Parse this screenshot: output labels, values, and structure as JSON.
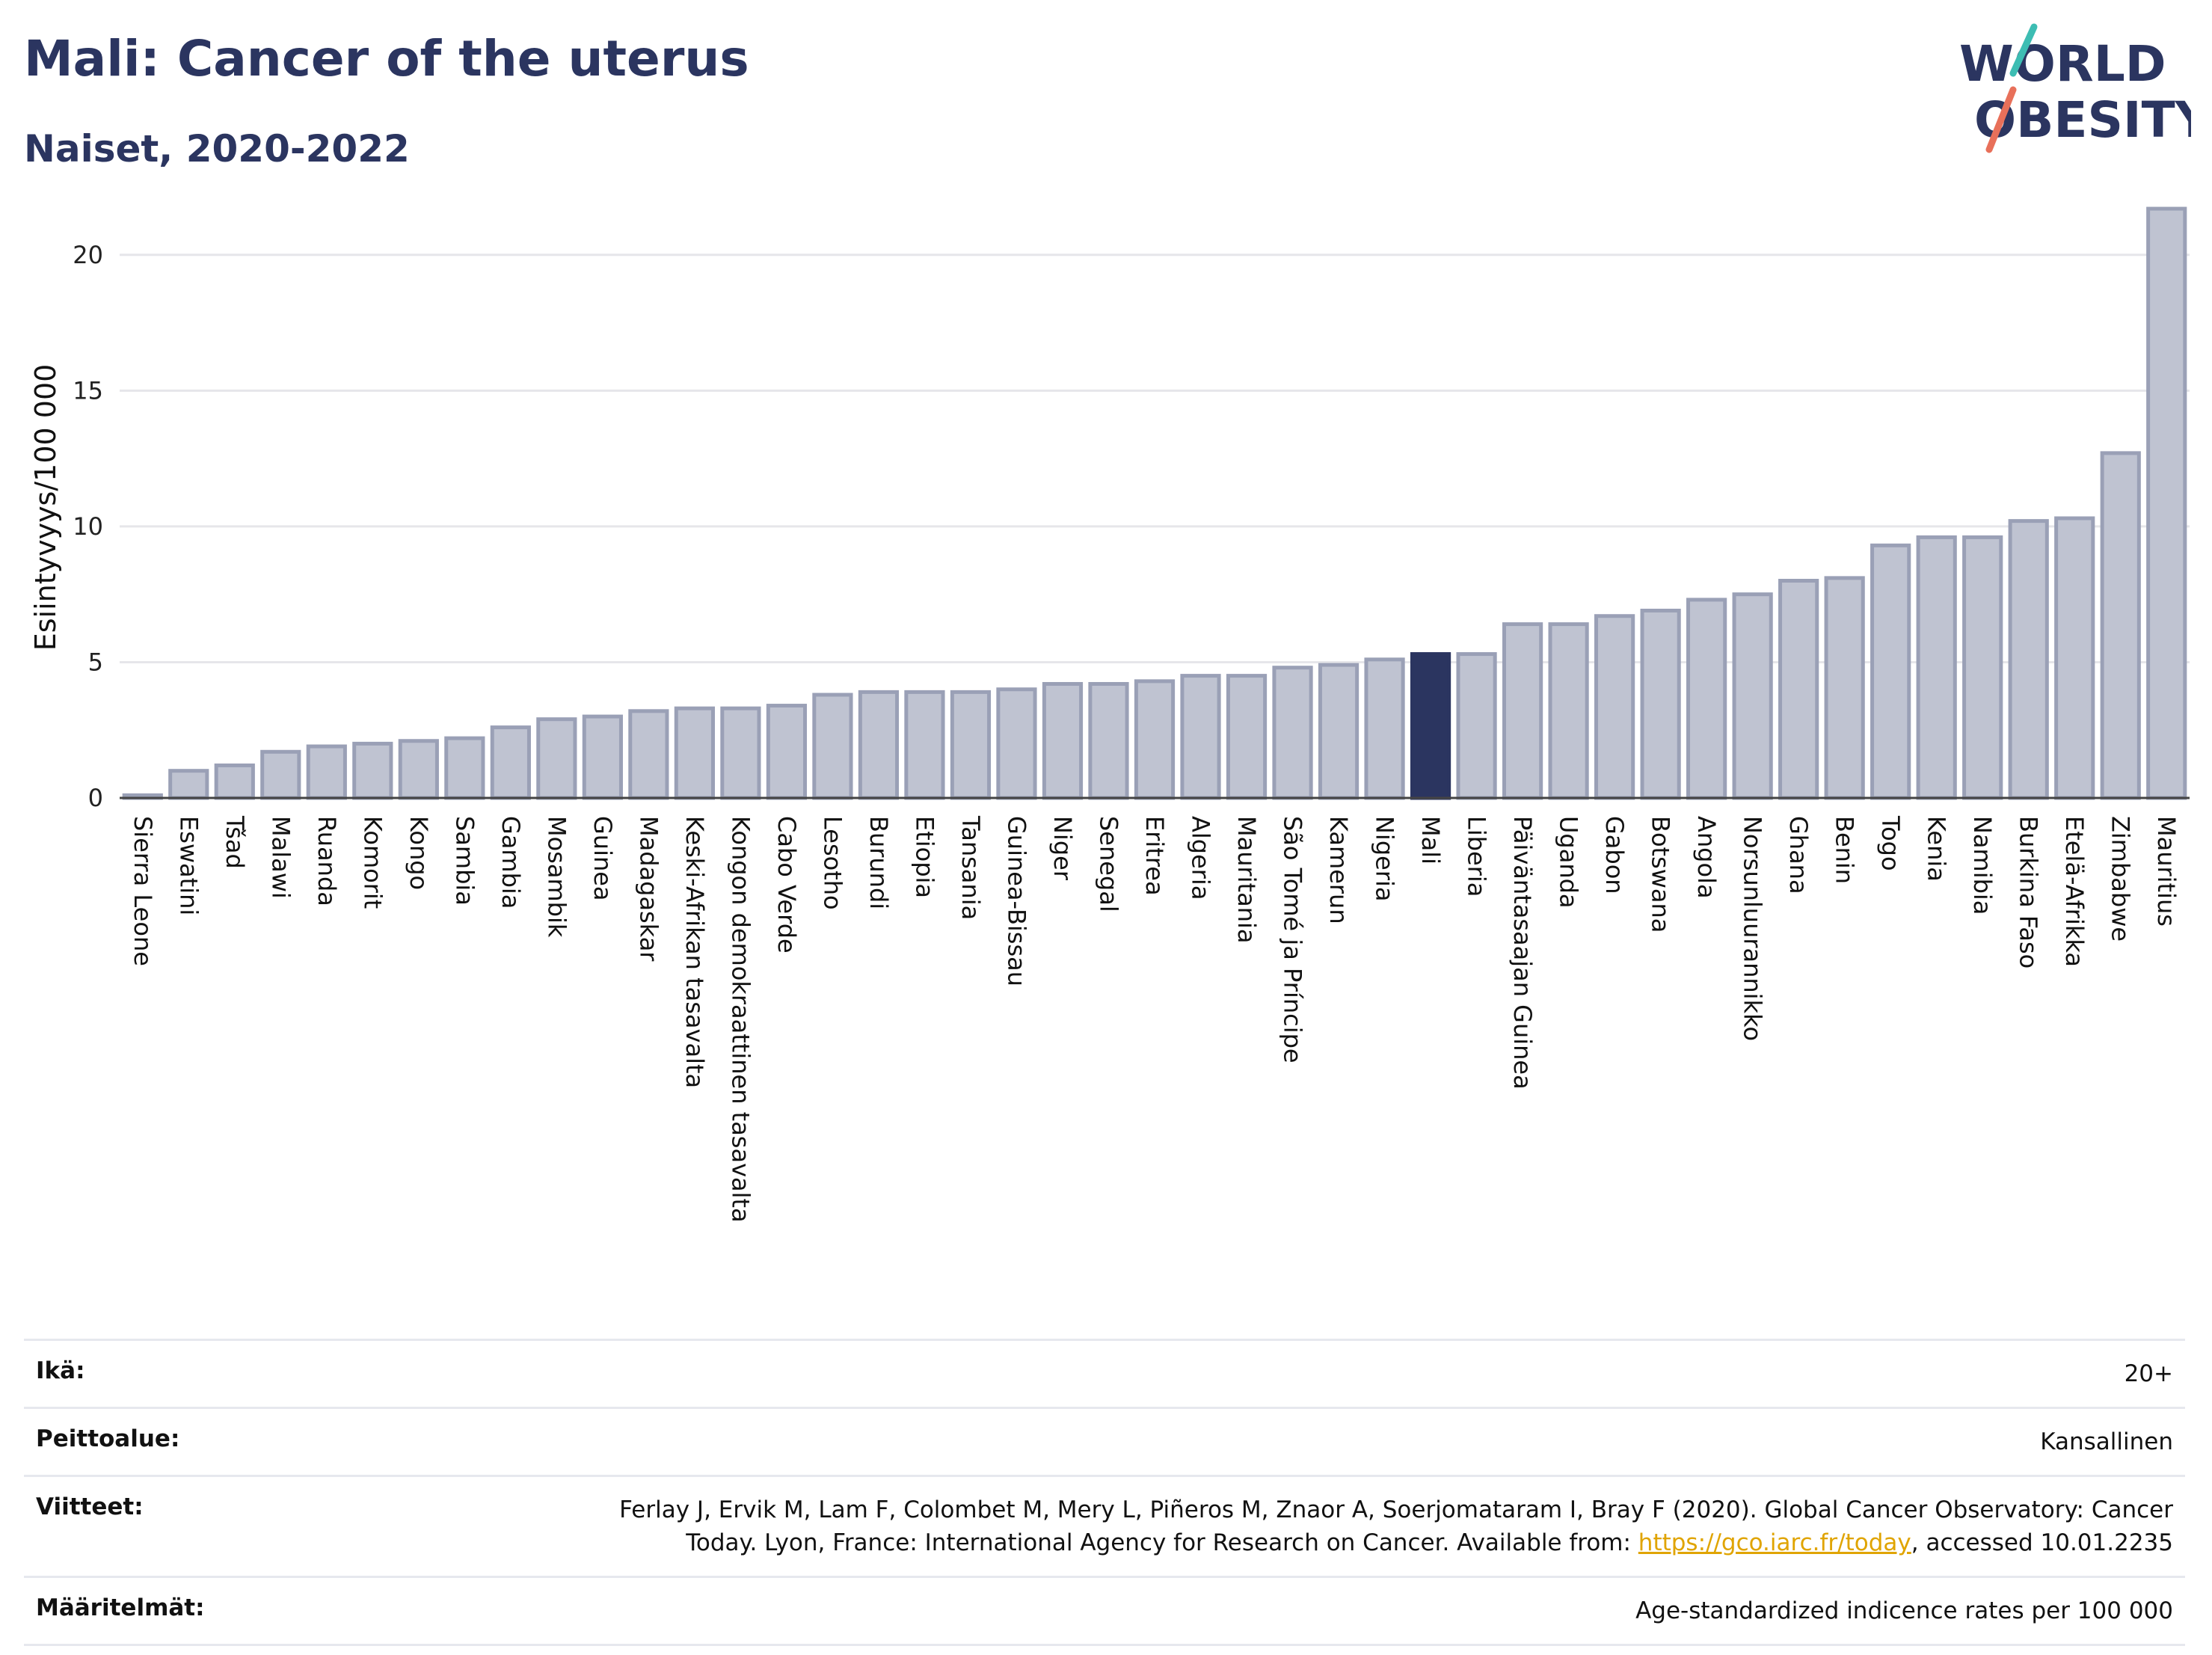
{
  "header": {
    "title": "Mali: Cancer of the uterus",
    "subtitle": "Naiset, 2020-2022"
  },
  "logo": {
    "line1": "WORLD",
    "line2": "OBESITY",
    "accent_colors": [
      "#3dbdb3",
      "#e8705a"
    ]
  },
  "colors": {
    "bar": "#bfc3d1",
    "bar_stroke": "#9aa0b6",
    "highlight": "#2b3560",
    "grid": "#e6e6ea"
  },
  "chart_data": {
    "type": "bar",
    "ylabel": "Esiintyvyys/100 000",
    "ylim": [
      0,
      22.5
    ],
    "yticks": [
      0,
      5,
      10,
      15,
      20
    ],
    "grid": true,
    "highlight": "Mali",
    "categories": [
      "Sierra Leone",
      "Eswatini",
      "Tšad",
      "Malawi",
      "Ruanda",
      "Komorit",
      "Kongo",
      "Sambia",
      "Gambia",
      "Mosambik",
      "Guinea",
      "Madagaskar",
      "Keski-Afrikan tasavalta",
      "Kongon demokraattinen tasavalta",
      "Cabo Verde",
      "Lesotho",
      "Burundi",
      "Etiopia",
      "Tansania",
      "Guinea-Bissau",
      "Niger",
      "Senegal",
      "Eritrea",
      "Algeria",
      "Mauritania",
      "São Tomé ja Príncipe",
      "Kamerun",
      "Nigeria",
      "Mali",
      "Liberia",
      "Päiväntasaajan Guinea",
      "Uganda",
      "Gabon",
      "Botswana",
      "Angola",
      "Norsunluurannikko",
      "Ghana",
      "Benin",
      "Togo",
      "Kenia",
      "Namibia",
      "Burkina Faso",
      "Etelä-Afrikka",
      "Zimbabwe",
      "Mauritius"
    ],
    "values": [
      0.1,
      1.0,
      1.2,
      1.7,
      1.9,
      2.0,
      2.1,
      2.2,
      2.6,
      2.9,
      3.0,
      3.2,
      3.3,
      3.3,
      3.4,
      3.8,
      3.9,
      3.9,
      3.9,
      4.0,
      4.2,
      4.2,
      4.3,
      4.5,
      4.5,
      4.8,
      4.9,
      5.1,
      5.3,
      5.3,
      6.4,
      6.4,
      6.7,
      6.9,
      7.3,
      7.5,
      8.0,
      8.1,
      9.3,
      9.6,
      9.6,
      10.2,
      10.3,
      12.7,
      21.7
    ]
  },
  "footer": {
    "rows": [
      {
        "label": "Ikä:",
        "value": "20+"
      },
      {
        "label": "Peittoalue:",
        "value": "Kansallinen"
      },
      {
        "label": "Viitteet:",
        "value_pre": "Ferlay J, Ervik M, Lam F, Colombet M, Mery L, Piñeros M, Znaor A, Soerjomataram I, Bray F (2020). Global Cancer Observatory: Cancer Today. Lyon, France: International Agency for Research on Cancer. Available from: ",
        "link": "https://gco.iarc.fr/today",
        "value_post": ", accessed 10.01.2235"
      },
      {
        "label": "Määritelmät:",
        "value": "Age-standardized indicence rates per 100 000"
      }
    ]
  }
}
